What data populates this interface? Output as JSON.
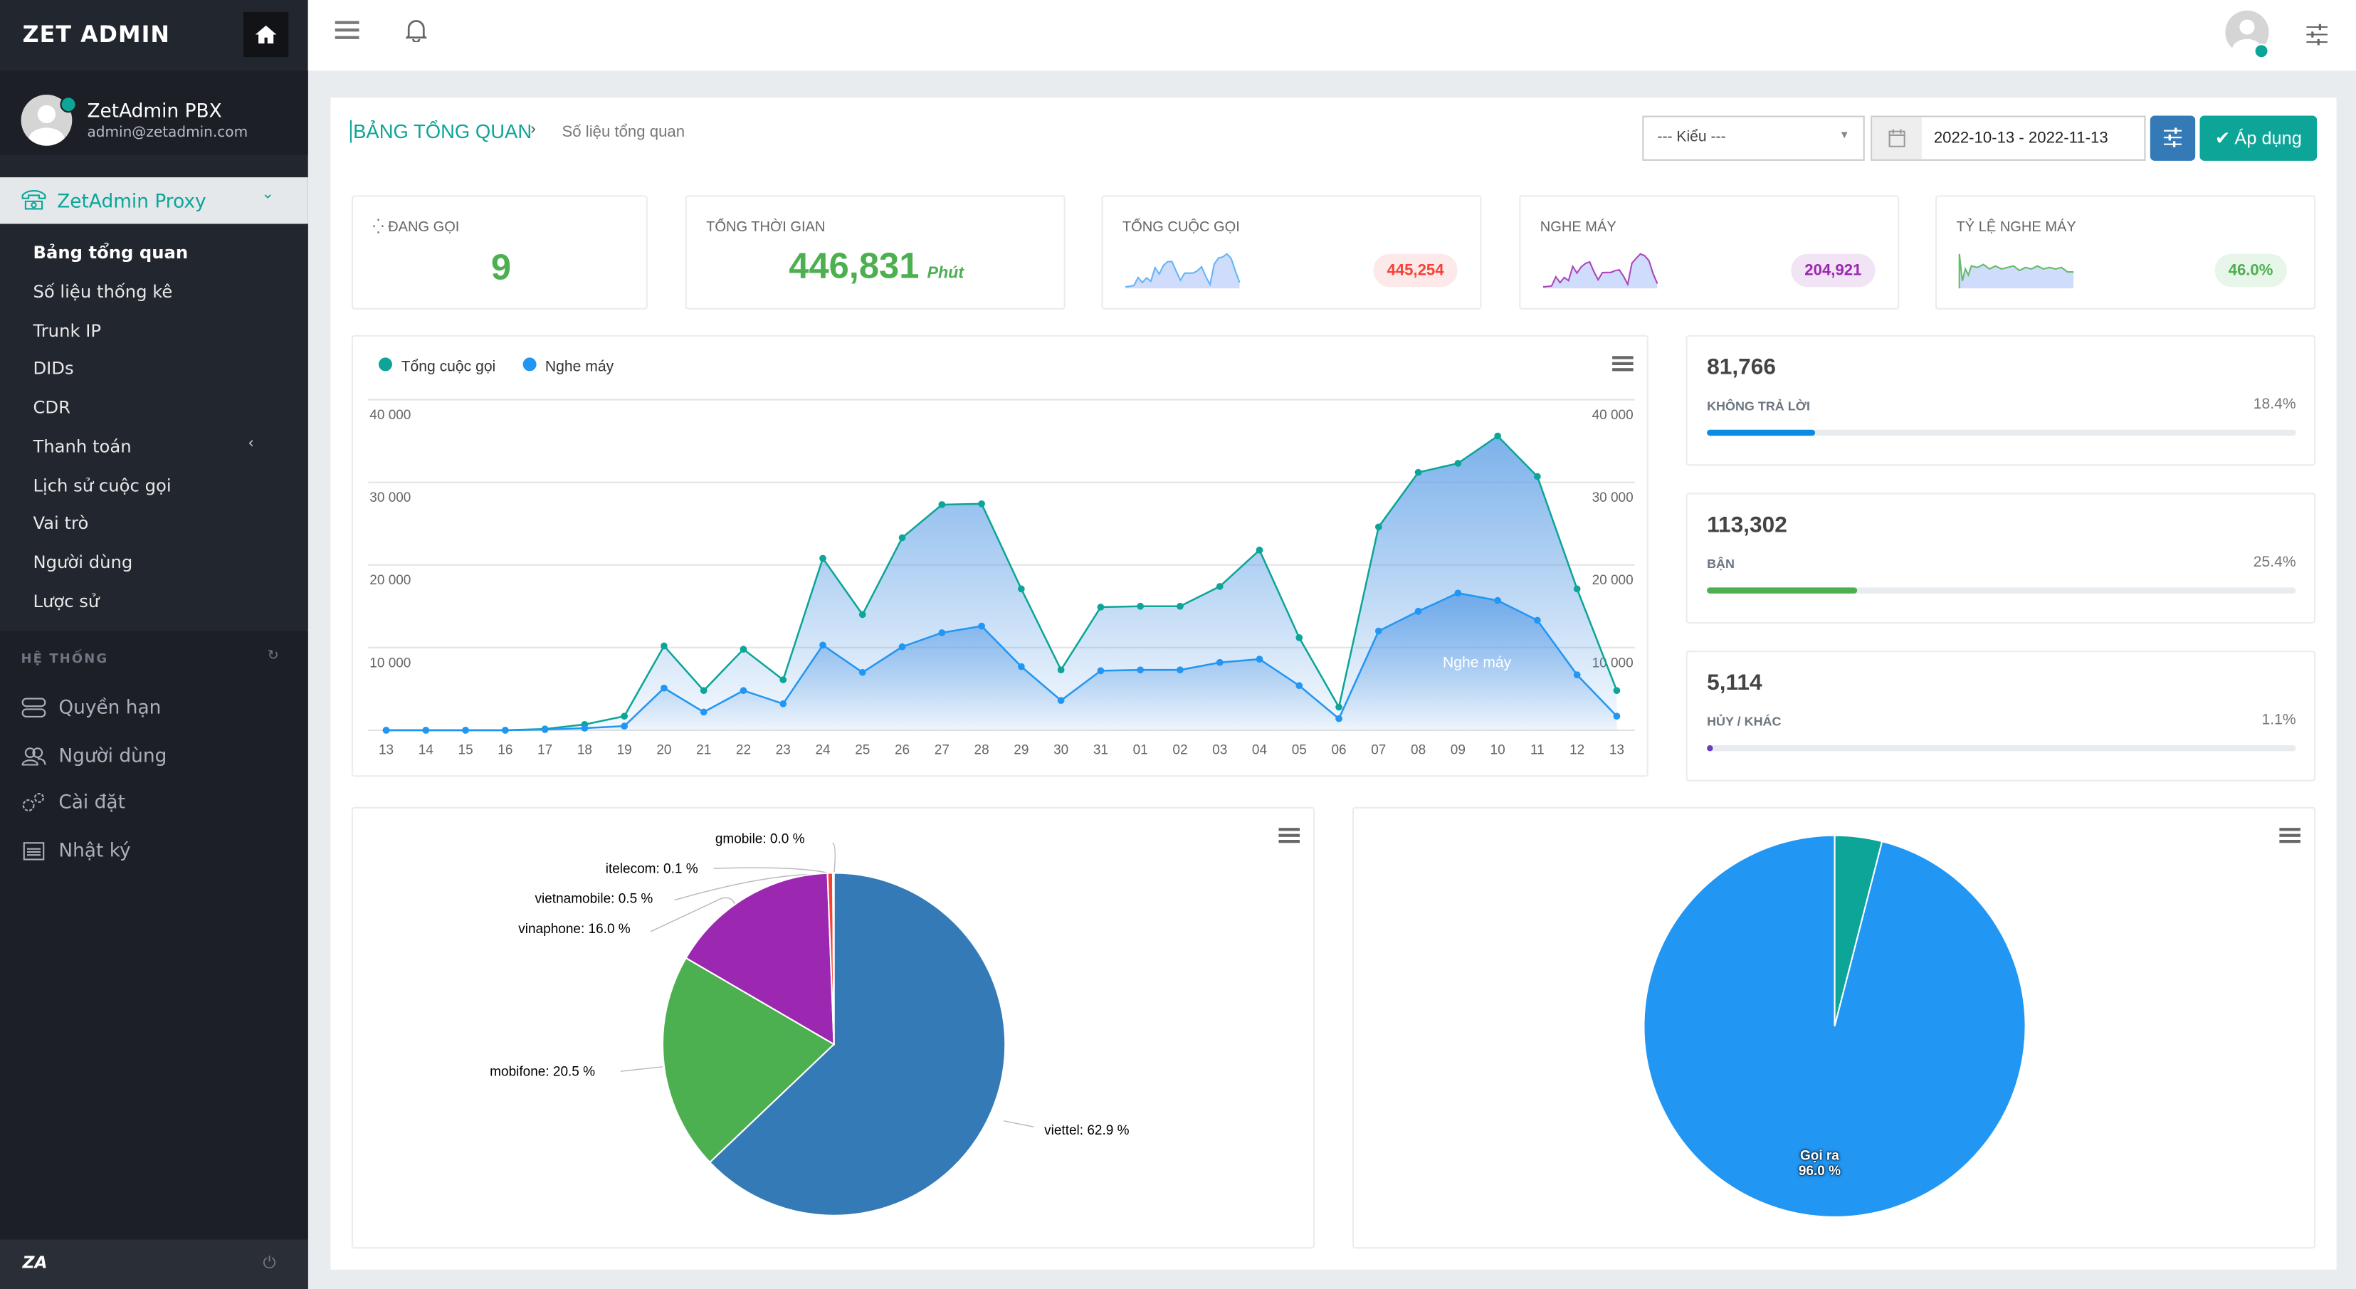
{
  "sidebar": {
    "logo": "ZET ADMIN",
    "user": {
      "name": "ZetAdmin PBX",
      "email": "admin@zetadmin.com"
    },
    "group": "ZetAdmin Proxy",
    "items": [
      {
        "label": "Bảng tổng quan",
        "active": true
      },
      {
        "label": "Số liệu thống kê"
      },
      {
        "label": "Trunk IP"
      },
      {
        "label": "DIDs"
      },
      {
        "label": "CDR"
      },
      {
        "label": "Thanh toán",
        "has_children": true
      },
      {
        "label": "Lịch sử cuộc gọi"
      },
      {
        "label": "Vai trò"
      },
      {
        "label": "Người dùng"
      },
      {
        "label": "Lược sử"
      }
    ],
    "system_heading": "HỆ THỐNG",
    "system_items": [
      {
        "label": "Quyền hạn",
        "icon": "toggle-icon"
      },
      {
        "label": "Người dùng",
        "icon": "users-icon"
      },
      {
        "label": "Cài đặt",
        "icon": "gears-icon"
      },
      {
        "label": "Nhật ký",
        "icon": "calendar-icon"
      }
    ],
    "footer_logo": "ZA"
  },
  "header": {
    "breadcrumb_title": "BẢNG TỔNG QUAN",
    "breadcrumb_sub": "Số liệu tổng quan",
    "type_select": "--- Kiểu ---",
    "date_range": "2022-10-13 - 2022-11-13",
    "apply_label": "Áp dụng"
  },
  "stats": {
    "active_calls": {
      "label": "ĐANG GỌI",
      "value": "9"
    },
    "total_time": {
      "label": "TỔNG THỜI GIAN",
      "value": "446,831",
      "unit": "Phút"
    },
    "total_calls": {
      "label": "TỔNG CUỘC GỌI",
      "value": "445,254"
    },
    "answered": {
      "label": "NGHE MÁY",
      "value": "204,921"
    },
    "answer_rate": {
      "label": "TỶ LỆ NGHE MÁY",
      "value": "46.0%"
    }
  },
  "breakdown": [
    {
      "value": "81,766",
      "label": "KHÔNG TRẢ LỜI",
      "pct": "18.4%",
      "fill": 18.4,
      "color": "#0a8de0"
    },
    {
      "value": "113,302",
      "label": "BẬN",
      "pct": "25.4%",
      "fill": 25.4,
      "color": "#4caf50"
    },
    {
      "value": "5,114",
      "label": "HỦY / KHÁC",
      "pct": "1.1%",
      "fill": 1.1,
      "color": "#6a3cc4"
    }
  ],
  "colors": {
    "teal": "#0ca597",
    "blue": "#2196f3",
    "sidebar": "#22262e",
    "primary": "#337ab7"
  },
  "chart_data": [
    {
      "type": "area",
      "categories": [
        "13",
        "14",
        "15",
        "16",
        "17",
        "18",
        "19",
        "20",
        "21",
        "22",
        "23",
        "24",
        "25",
        "26",
        "27",
        "28",
        "29",
        "30",
        "31",
        "01",
        "02",
        "03",
        "04",
        "05",
        "06",
        "07",
        "08",
        "09",
        "10",
        "11",
        "12",
        "13"
      ],
      "ylim": [
        0,
        40000
      ],
      "yticks": [
        "10 000",
        "20 000",
        "30 000",
        "40 000"
      ],
      "grid": true,
      "legend": "top-left",
      "annotation": "Nghe máy",
      "series": [
        {
          "name": "Tổng cuộc gọi",
          "color": "#0ca597",
          "values": [
            0,
            0,
            0,
            0,
            150,
            700,
            1700,
            10200,
            4800,
            9800,
            6100,
            20800,
            14000,
            23300,
            27300,
            27400,
            17100,
            7300,
            14900,
            15000,
            15000,
            17400,
            21800,
            11200,
            2800,
            24600,
            31200,
            32300,
            35600,
            30700,
            17100,
            4800
          ]
        },
        {
          "name": "Nghe máy",
          "color": "#2196f3",
          "values": [
            0,
            0,
            0,
            0,
            80,
            250,
            500,
            5100,
            2200,
            4800,
            3200,
            10300,
            7000,
            10100,
            11800,
            12600,
            7700,
            3600,
            7200,
            7300,
            7300,
            8200,
            8600,
            5400,
            1400,
            12000,
            14400,
            16600,
            15700,
            13300,
            6700,
            1700
          ]
        }
      ]
    },
    {
      "type": "pie",
      "slices": [
        {
          "name": "viettel",
          "value": 62.9,
          "label": "viettel: 62.9 %",
          "color": "#337ab7"
        },
        {
          "name": "mobifone",
          "value": 20.5,
          "label": "mobifone: 20.5 %",
          "color": "#4caf50"
        },
        {
          "name": "vinaphone",
          "value": 16.0,
          "label": "vinaphone: 16.0 %",
          "color": "#9c27b0"
        },
        {
          "name": "vietnamobile",
          "value": 0.5,
          "label": "vietnamobile: 0.5 %",
          "color": "#f44336"
        },
        {
          "name": "itelecom",
          "value": 0.1,
          "label": "itelecom: 0.1 %",
          "color": "#ff9800"
        },
        {
          "name": "gmobile",
          "value": 0.0,
          "label": "gmobile: 0.0 %",
          "color": "#795548"
        }
      ]
    },
    {
      "type": "pie",
      "slices": [
        {
          "value": 4.0,
          "color": "#0ca597"
        },
        {
          "name": "Gọi ra",
          "value": 96.0,
          "label": "Gọi ra",
          "pct": "96.0 %",
          "color": "#2196f3"
        }
      ]
    }
  ]
}
